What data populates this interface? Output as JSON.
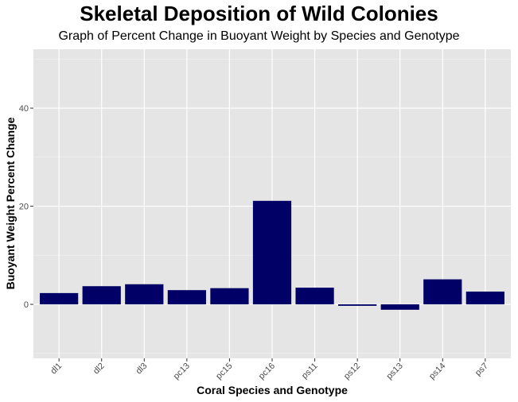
{
  "chart_data": {
    "type": "bar",
    "title": "Skeletal Deposition of Wild Colonies",
    "subtitle": "Graph of Percent Change in Buoyant Weight by Species and Genotype",
    "xlabel": "Coral Species and Genotype",
    "ylabel": "Buoyant Weight Percent Change",
    "categories": [
      "dl1",
      "dl2",
      "dl3",
      "pc13",
      "pc15",
      "pc16",
      "ps11",
      "ps12",
      "ps13",
      "ps14",
      "ps7"
    ],
    "values": [
      2.3,
      3.7,
      4.1,
      2.9,
      3.3,
      21.1,
      3.4,
      -0.3,
      -1.1,
      5.1,
      2.6
    ],
    "ylim": [
      -11,
      52
    ],
    "yticks": [
      0,
      20,
      40
    ],
    "grid": true,
    "bar_color": "#000066",
    "panel_color": "#e5e5e5"
  }
}
